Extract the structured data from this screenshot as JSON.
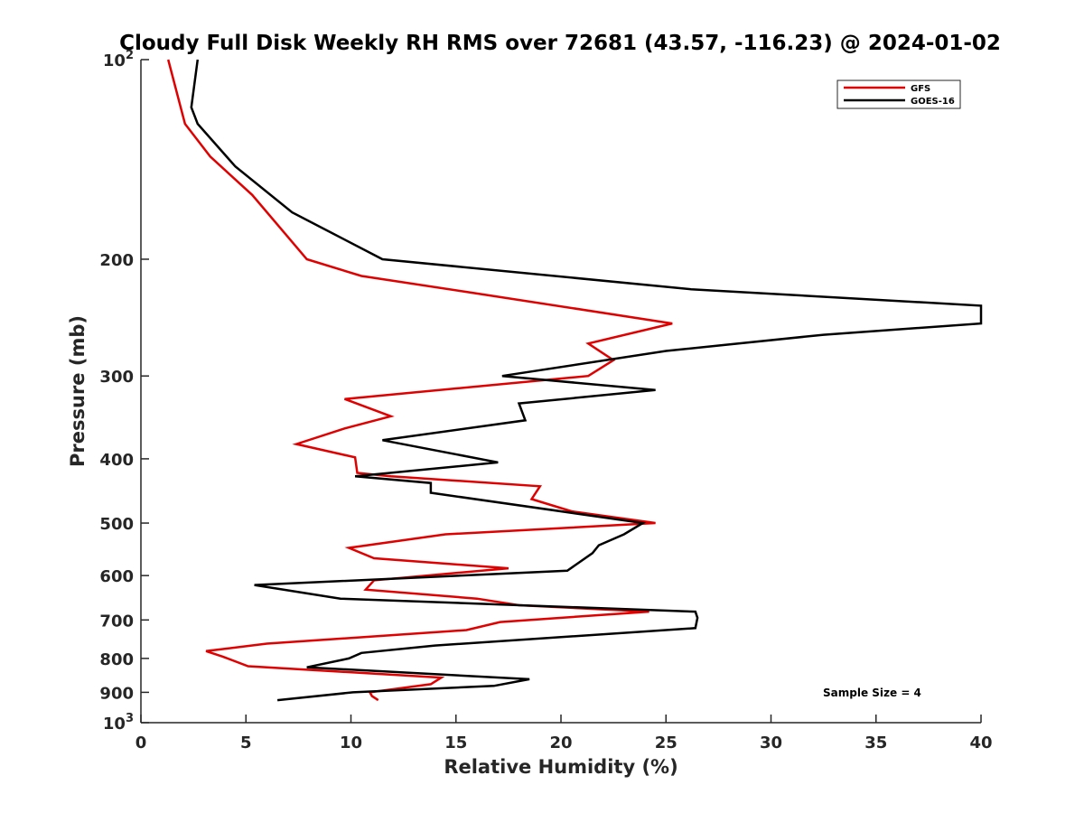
{
  "chart_data": {
    "type": "line",
    "title": "Cloudy Full Disk Weekly RH RMS over 72681 (43.57, -116.23) @ 2024-01-02",
    "xlabel": "Relative Humidity (%)",
    "ylabel": "Pressure (mb)",
    "xlim": [
      0,
      40
    ],
    "ylim": [
      100,
      1000
    ],
    "y_scale": "log",
    "y_reversed": true,
    "grid": false,
    "legend_position": "top-right",
    "x_ticks": [
      0,
      5,
      10,
      15,
      20,
      25,
      30,
      35,
      40
    ],
    "x_tick_labels": [
      "0",
      "5",
      "10",
      "15",
      "20",
      "25",
      "30",
      "35",
      "40"
    ],
    "y_ticks": [
      100,
      200,
      300,
      400,
      500,
      600,
      700,
      800,
      900,
      1000
    ],
    "y_tick_labels": [
      {
        "base": "10",
        "exp": "2"
      },
      {
        "base": "200",
        "exp": ""
      },
      {
        "base": "300",
        "exp": ""
      },
      {
        "base": "400",
        "exp": ""
      },
      {
        "base": "500",
        "exp": ""
      },
      {
        "base": "600",
        "exp": ""
      },
      {
        "base": "700",
        "exp": ""
      },
      {
        "base": "800",
        "exp": ""
      },
      {
        "base": "900",
        "exp": ""
      },
      {
        "base": "10",
        "exp": "3"
      }
    ],
    "annotation": "Sample Size = 4",
    "series": [
      {
        "name": "GFS",
        "color": "#e00000",
        "points": [
          [
            1.3,
            100
          ],
          [
            2.1,
            125
          ],
          [
            3.3,
            140
          ],
          [
            5.3,
            160
          ],
          [
            7.9,
            200
          ],
          [
            10.5,
            212
          ],
          [
            15.5,
            224
          ],
          [
            25.3,
            250
          ],
          [
            21.3,
            268
          ],
          [
            22.5,
            284
          ],
          [
            21.3,
            300
          ],
          [
            9.7,
            325
          ],
          [
            11.9,
            345
          ],
          [
            9.7,
            360
          ],
          [
            7.4,
            380
          ],
          [
            10.2,
            398
          ],
          [
            10.3,
            420
          ],
          [
            11.9,
            425
          ],
          [
            19.0,
            440
          ],
          [
            18.6,
            460
          ],
          [
            20.5,
            480
          ],
          [
            24.5,
            500
          ],
          [
            14.5,
            520
          ],
          [
            9.9,
            545
          ],
          [
            11.1,
            565
          ],
          [
            17.5,
            585
          ],
          [
            11.1,
            610
          ],
          [
            10.7,
            630
          ],
          [
            16.0,
            650
          ],
          [
            18.0,
            665
          ],
          [
            24.2,
            680
          ],
          [
            17.1,
            705
          ],
          [
            15.5,
            725
          ],
          [
            6.0,
            760
          ],
          [
            3.1,
            780
          ],
          [
            3.9,
            795
          ],
          [
            5.1,
            822
          ],
          [
            14.3,
            855
          ],
          [
            13.8,
            875
          ],
          [
            10.9,
            900
          ],
          [
            11.0,
            912
          ],
          [
            11.3,
            925
          ]
        ]
      },
      {
        "name": "GOES-16",
        "color": "#000000",
        "points": [
          [
            2.7,
            100
          ],
          [
            2.4,
            118
          ],
          [
            2.7,
            125
          ],
          [
            4.5,
            145
          ],
          [
            7.2,
            170
          ],
          [
            11.5,
            200
          ],
          [
            26.2,
            222
          ],
          [
            40.0,
            235
          ],
          [
            40.0,
            250
          ],
          [
            32.5,
            260
          ],
          [
            25.0,
            275
          ],
          [
            17.2,
            300
          ],
          [
            24.5,
            315
          ],
          [
            18.0,
            330
          ],
          [
            18.3,
            350
          ],
          [
            11.5,
            375
          ],
          [
            17.0,
            405
          ],
          [
            10.2,
            425
          ],
          [
            13.8,
            435
          ],
          [
            13.8,
            450
          ],
          [
            23.9,
            500
          ],
          [
            23.0,
            520
          ],
          [
            21.8,
            540
          ],
          [
            21.5,
            555
          ],
          [
            20.3,
            590
          ],
          [
            5.4,
            620
          ],
          [
            9.5,
            650
          ],
          [
            26.4,
            680
          ],
          [
            26.5,
            695
          ],
          [
            26.4,
            720
          ],
          [
            14.0,
            765
          ],
          [
            10.5,
            785
          ],
          [
            9.9,
            800
          ],
          [
            7.9,
            825
          ],
          [
            18.5,
            860
          ],
          [
            16.8,
            880
          ],
          [
            10.1,
            900
          ],
          [
            6.5,
            925
          ]
        ]
      }
    ]
  }
}
